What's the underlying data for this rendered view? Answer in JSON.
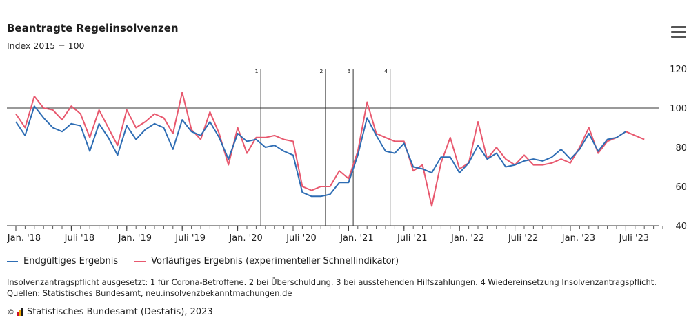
{
  "header": {
    "title": "Beantragte Regelinsolvenzen",
    "subtitle": "Index 2015 = 100",
    "menu_icon": "hamburger-menu-icon"
  },
  "chart_data": {
    "type": "line",
    "title": "Beantragte Regelinsolvenzen",
    "subtitle": "Index 2015 = 100",
    "y_axis": {
      "min": 40,
      "max": 120,
      "ticks": [
        40,
        60,
        80,
        100,
        120
      ],
      "position": "right",
      "reference_line": 100
    },
    "x_axis": {
      "start": "2018-01",
      "end": "2023-11",
      "tick_labels": [
        "Jan. '18",
        "Juli '18",
        "Jan. '19",
        "Juli '19",
        "Jan. '20",
        "Juli '20",
        "Jan. '21",
        "Juli '21",
        "Jan. '22",
        "Juli '22",
        "Jan. '23",
        "Juli '23"
      ],
      "tick_months": [
        "2018-01",
        "2018-07",
        "2019-01",
        "2019-07",
        "2020-01",
        "2020-07",
        "2021-01",
        "2021-07",
        "2022-01",
        "2022-07",
        "2023-01",
        "2023-07"
      ]
    },
    "markers": [
      {
        "label": "1",
        "month": "2020-03"
      },
      {
        "label": "2",
        "month": "2020-10"
      },
      {
        "label": "3",
        "month": "2021-01"
      },
      {
        "label": "4",
        "month": "2021-05"
      }
    ],
    "series": [
      {
        "name": "Endgültiges Ergebnis",
        "color": "#2e6db4",
        "start": "2018-01",
        "values": [
          93,
          86,
          101,
          95,
          90,
          88,
          92,
          91,
          78,
          92,
          85,
          76,
          91,
          84,
          89,
          92,
          90,
          79,
          94,
          88,
          86,
          93,
          85,
          74,
          87,
          83,
          84,
          80,
          81,
          78,
          76,
          57,
          55,
          55,
          56,
          62,
          62,
          76,
          95,
          86,
          78,
          77,
          82,
          70,
          69,
          67,
          75,
          75,
          67,
          72,
          81,
          74,
          77,
          70,
          71,
          73,
          74,
          73,
          75,
          79,
          74,
          79,
          87,
          78,
          84,
          85,
          88
        ]
      },
      {
        "name": "Vorläufiges Ergebnis (experimenteller Schnellindikator)",
        "color": "#e8586e",
        "start": "2018-01",
        "values": [
          97,
          90,
          106,
          100,
          99,
          94,
          101,
          97,
          85,
          99,
          90,
          81,
          99,
          90,
          93,
          97,
          95,
          87,
          108,
          89,
          84,
          98,
          87,
          71,
          90,
          77,
          85,
          85,
          86,
          84,
          83,
          60,
          58,
          60,
          60,
          68,
          64,
          78,
          103,
          87,
          85,
          83,
          83,
          68,
          71,
          50,
          72,
          85,
          69,
          72,
          93,
          74,
          80,
          74,
          71,
          76,
          71,
          71,
          72,
          74,
          72,
          80,
          90,
          77,
          83,
          85,
          88,
          86,
          84
        ]
      }
    ],
    "legend": {
      "placement": "bottom-left"
    }
  },
  "notes": {
    "line1": "Insolvenzantragspflicht ausgesetzt: 1 für Corona-Betroffene. 2 bei Überschuldung. 3 bei ausstehenden Hilfszahlungen. 4 Wiedereinsetzung Insolvenzantragspflicht.",
    "line2": "Quellen: Statistisches Bundesamt, neu.insolvenzbekanntmachungen.de"
  },
  "footer": {
    "copyright_symbol": "©",
    "text": "Statistisches Bundesamt (Destatis), 2023",
    "logo_icon": "destatis-logo-icon"
  }
}
